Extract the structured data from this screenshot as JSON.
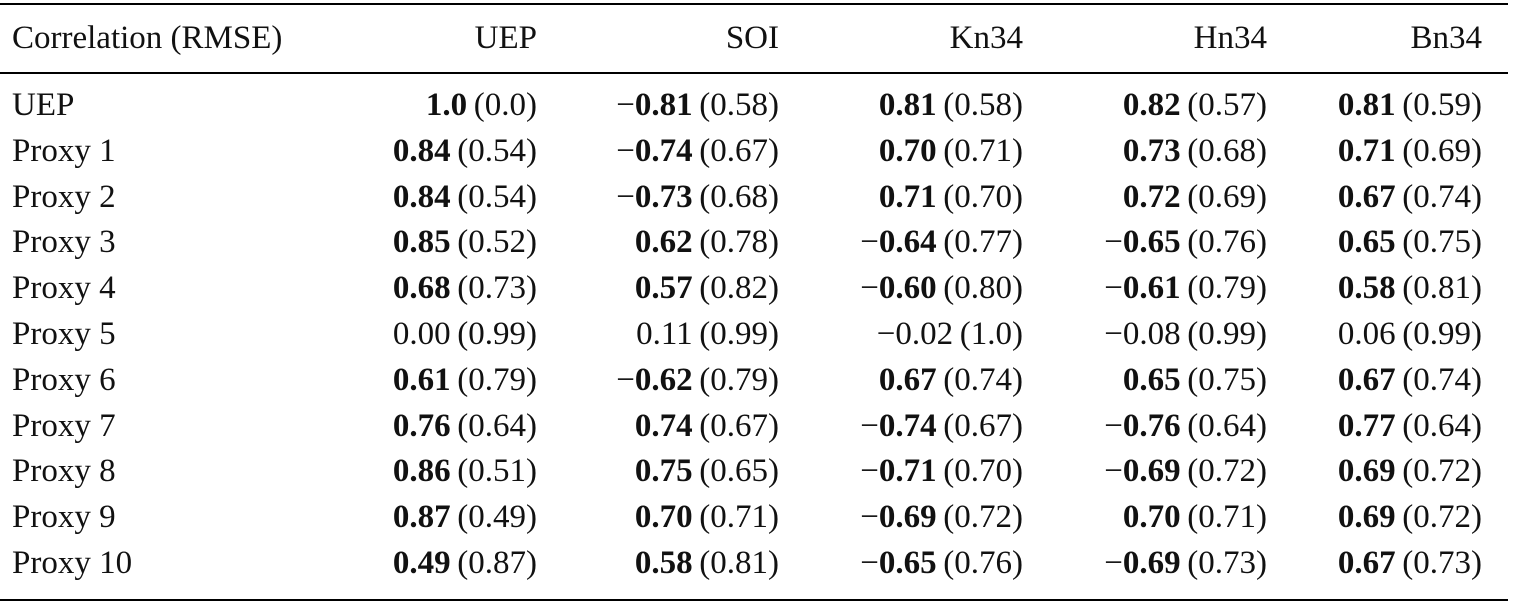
{
  "table": {
    "header": [
      "Correlation (RMSE)",
      "UEP",
      "SOI",
      "Kn34",
      "Hn34",
      "Bn34"
    ],
    "rows": [
      {
        "label": "UEP",
        "cells": [
          {
            "value": "1.0",
            "rmse": "(0.0)",
            "bold": true
          },
          {
            "sign": "−",
            "value": "0.81",
            "rmse": "(0.58)",
            "bold": true
          },
          {
            "value": "0.81",
            "rmse": "(0.58)",
            "bold": true
          },
          {
            "value": "0.82",
            "rmse": "(0.57)",
            "bold": true
          },
          {
            "value": "0.81",
            "rmse": "(0.59)",
            "bold": true
          }
        ]
      },
      {
        "label": "Proxy 1",
        "cells": [
          {
            "value": "0.84",
            "rmse": "(0.54)",
            "bold": true
          },
          {
            "sign": "−",
            "value": "0.74",
            "rmse": "(0.67)",
            "bold": true
          },
          {
            "value": "0.70",
            "rmse": "(0.71)",
            "bold": true
          },
          {
            "value": "0.73",
            "rmse": "(0.68)",
            "bold": true
          },
          {
            "value": "0.71",
            "rmse": "(0.69)",
            "bold": true
          }
        ]
      },
      {
        "label": "Proxy 2",
        "cells": [
          {
            "value": "0.84",
            "rmse": "(0.54)",
            "bold": true
          },
          {
            "sign": "−",
            "value": "0.73",
            "rmse": "(0.68)",
            "bold": true
          },
          {
            "value": "0.71",
            "rmse": "(0.70)",
            "bold": true
          },
          {
            "value": "0.72",
            "rmse": "(0.69)",
            "bold": true
          },
          {
            "value": "0.67",
            "rmse": "(0.74)",
            "bold": true
          }
        ]
      },
      {
        "label": "Proxy 3",
        "cells": [
          {
            "value": "0.85",
            "rmse": "(0.52)",
            "bold": true
          },
          {
            "value": "0.62",
            "rmse": "(0.78)",
            "bold": true
          },
          {
            "sign": "−",
            "value": "0.64",
            "rmse": "(0.77)",
            "bold": true
          },
          {
            "sign": "−",
            "value": "0.65",
            "rmse": "(0.76)",
            "bold": true
          },
          {
            "value": "0.65",
            "rmse": "(0.75)",
            "bold": true
          }
        ]
      },
      {
        "label": "Proxy 4",
        "cells": [
          {
            "value": "0.68",
            "rmse": "(0.73)",
            "bold": true
          },
          {
            "value": "0.57",
            "rmse": "(0.82)",
            "bold": true
          },
          {
            "sign": "−",
            "value": "0.60",
            "rmse": "(0.80)",
            "bold": true
          },
          {
            "sign": "−",
            "value": "0.61",
            "rmse": "(0.79)",
            "bold": true
          },
          {
            "value": "0.58",
            "rmse": "(0.81)",
            "bold": true
          }
        ]
      },
      {
        "label": "Proxy 5",
        "cells": [
          {
            "value": "0.00",
            "rmse": "(0.99)",
            "bold": false
          },
          {
            "value": "0.11",
            "rmse": "(0.99)",
            "bold": false
          },
          {
            "sign": "−",
            "value": "0.02",
            "rmse": "(1.0)",
            "bold": false
          },
          {
            "sign": "−",
            "value": "0.08",
            "rmse": "(0.99)",
            "bold": false
          },
          {
            "value": "0.06",
            "rmse": "(0.99)",
            "bold": false
          }
        ]
      },
      {
        "label": "Proxy 6",
        "cells": [
          {
            "value": "0.61",
            "rmse": "(0.79)",
            "bold": true
          },
          {
            "sign": "−",
            "value": "0.62",
            "rmse": "(0.79)",
            "bold": true
          },
          {
            "value": "0.67",
            "rmse": "(0.74)",
            "bold": true
          },
          {
            "value": "0.65",
            "rmse": "(0.75)",
            "bold": true
          },
          {
            "value": "0.67",
            "rmse": "(0.74)",
            "bold": true
          }
        ]
      },
      {
        "label": "Proxy 7",
        "cells": [
          {
            "value": "0.76",
            "rmse": "(0.64)",
            "bold": true
          },
          {
            "value": "0.74",
            "rmse": "(0.67)",
            "bold": true
          },
          {
            "sign": "−",
            "value": "0.74",
            "rmse": "(0.67)",
            "bold": true
          },
          {
            "sign": "−",
            "value": "0.76",
            "rmse": "(0.64)",
            "bold": true
          },
          {
            "value": "0.77",
            "rmse": "(0.64)",
            "bold": true
          }
        ]
      },
      {
        "label": "Proxy 8",
        "cells": [
          {
            "value": "0.86",
            "rmse": "(0.51)",
            "bold": true
          },
          {
            "value": "0.75",
            "rmse": "(0.65)",
            "bold": true
          },
          {
            "sign": "−",
            "value": "0.71",
            "rmse": "(0.70)",
            "bold": true
          },
          {
            "sign": "−",
            "value": "0.69",
            "rmse": "(0.72)",
            "bold": true
          },
          {
            "value": "0.69",
            "rmse": "(0.72)",
            "bold": true
          }
        ]
      },
      {
        "label": "Proxy 9",
        "cells": [
          {
            "value": "0.87",
            "rmse": "(0.49)",
            "bold": true
          },
          {
            "value": "0.70",
            "rmse": "(0.71)",
            "bold": true
          },
          {
            "sign": "−",
            "value": "0.69",
            "rmse": "(0.72)",
            "bold": true
          },
          {
            "value": "0.70",
            "rmse": "(0.71)",
            "bold": true
          },
          {
            "value": "0.69",
            "rmse": "(0.72)",
            "bold": true
          }
        ]
      },
      {
        "label": "Proxy 10",
        "cells": [
          {
            "value": "0.49",
            "rmse": "(0.87)",
            "bold": true
          },
          {
            "value": "0.58",
            "rmse": "(0.81)",
            "bold": true
          },
          {
            "sign": "−",
            "value": "0.65",
            "rmse": "(0.76)",
            "bold": true
          },
          {
            "sign": "−",
            "value": "0.69",
            "rmse": "(0.73)",
            "bold": true
          },
          {
            "value": "0.67",
            "rmse": "(0.73)",
            "bold": true
          }
        ]
      }
    ]
  }
}
